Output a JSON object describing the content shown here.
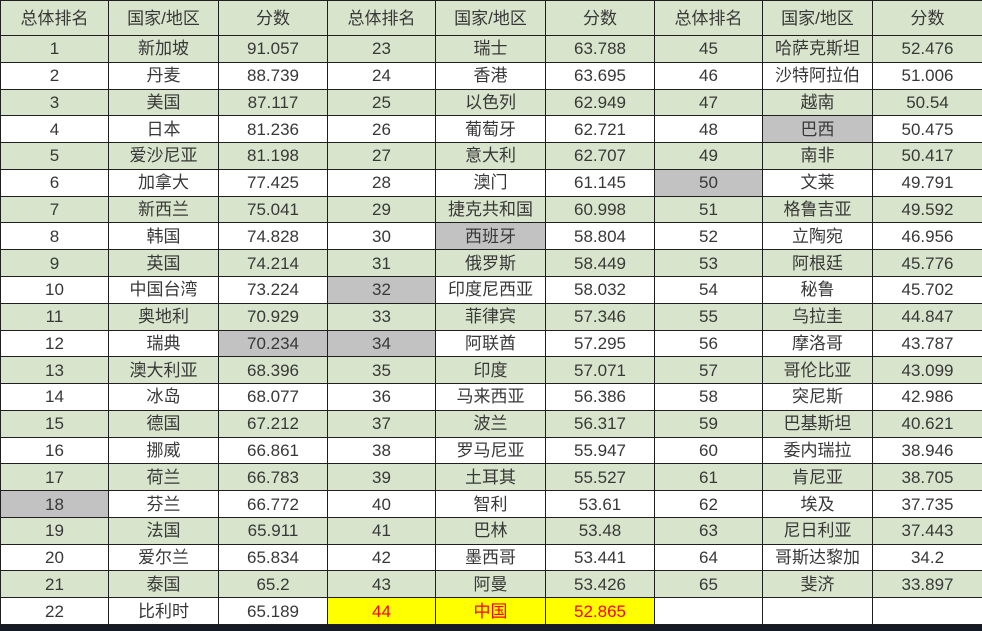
{
  "colors": {
    "green": "#d8e4cb",
    "gray": "#c2c2c2",
    "yellow": "#ffff00",
    "red": "#fe0000",
    "border": "#1f1f1f",
    "text": "#383838",
    "strip": "#151a24"
  },
  "table": {
    "column_headers": [
      "总体排名",
      "国家/地区",
      "分数"
    ],
    "groups": [
      [
        {
          "rank": "1",
          "country": "新加坡",
          "score": "91.057"
        },
        {
          "rank": "2",
          "country": "丹麦",
          "score": "88.739"
        },
        {
          "rank": "3",
          "country": "美国",
          "score": "87.117"
        },
        {
          "rank": "4",
          "country": "日本",
          "score": "81.236"
        },
        {
          "rank": "5",
          "country": "爱沙尼亚",
          "score": "81.198"
        },
        {
          "rank": "6",
          "country": "加拿大",
          "score": "77.425"
        },
        {
          "rank": "7",
          "country": "新西兰",
          "score": "75.041"
        },
        {
          "rank": "8",
          "country": "韩国",
          "score": "74.828"
        },
        {
          "rank": "9",
          "country": "英国",
          "score": "74.214"
        },
        {
          "rank": "10",
          "country": "中国台湾",
          "score": "73.224"
        },
        {
          "rank": "11",
          "country": "奥地利",
          "score": "70.929"
        },
        {
          "rank": "12",
          "country": "瑞典",
          "score": "70.234",
          "gray": [
            "score"
          ]
        },
        {
          "rank": "13",
          "country": "澳大利亚",
          "score": "68.396"
        },
        {
          "rank": "14",
          "country": "冰岛",
          "score": "68.077"
        },
        {
          "rank": "15",
          "country": "德国",
          "score": "67.212"
        },
        {
          "rank": "16",
          "country": "挪威",
          "score": "66.861"
        },
        {
          "rank": "17",
          "country": "荷兰",
          "score": "66.783"
        },
        {
          "rank": "18",
          "country": "芬兰",
          "score": "66.772",
          "gray": [
            "rank"
          ]
        },
        {
          "rank": "19",
          "country": "法国",
          "score": "65.911"
        },
        {
          "rank": "20",
          "country": "爱尔兰",
          "score": "65.834"
        },
        {
          "rank": "21",
          "country": "泰国",
          "score": "65.2"
        },
        {
          "rank": "22",
          "country": "比利时",
          "score": "65.189"
        }
      ],
      [
        {
          "rank": "23",
          "country": "瑞士",
          "score": "63.788"
        },
        {
          "rank": "24",
          "country": "香港",
          "score": "63.695"
        },
        {
          "rank": "25",
          "country": "以色列",
          "score": "62.949"
        },
        {
          "rank": "26",
          "country": "葡萄牙",
          "score": "62.721"
        },
        {
          "rank": "27",
          "country": "意大利",
          "score": "62.707"
        },
        {
          "rank": "28",
          "country": "澳门",
          "score": "61.145"
        },
        {
          "rank": "29",
          "country": "捷克共和国",
          "score": "60.998"
        },
        {
          "rank": "30",
          "country": "西班牙",
          "score": "58.804",
          "gray": [
            "country"
          ]
        },
        {
          "rank": "31",
          "country": "俄罗斯",
          "score": "58.449"
        },
        {
          "rank": "32",
          "country": "印度尼西亚",
          "score": "58.032",
          "gray": [
            "rank"
          ]
        },
        {
          "rank": "33",
          "country": "菲律宾",
          "score": "57.346"
        },
        {
          "rank": "34",
          "country": "阿联酋",
          "score": "57.295",
          "gray": [
            "rank"
          ]
        },
        {
          "rank": "35",
          "country": "印度",
          "score": "57.071"
        },
        {
          "rank": "36",
          "country": "马来西亚",
          "score": "56.386"
        },
        {
          "rank": "37",
          "country": "波兰",
          "score": "56.317"
        },
        {
          "rank": "38",
          "country": "罗马尼亚",
          "score": "55.947"
        },
        {
          "rank": "39",
          "country": "土耳其",
          "score": "55.527"
        },
        {
          "rank": "40",
          "country": "智利",
          "score": "53.61"
        },
        {
          "rank": "41",
          "country": "巴林",
          "score": "53.48"
        },
        {
          "rank": "42",
          "country": "墨西哥",
          "score": "53.441"
        },
        {
          "rank": "43",
          "country": "阿曼",
          "score": "53.426"
        },
        {
          "rank": "44",
          "country": "中国",
          "score": "52.865",
          "highlight": true
        }
      ],
      [
        {
          "rank": "45",
          "country": "哈萨克斯坦",
          "score": "52.476"
        },
        {
          "rank": "46",
          "country": "沙特阿拉伯",
          "score": "51.006"
        },
        {
          "rank": "47",
          "country": "越南",
          "score": "50.54"
        },
        {
          "rank": "48",
          "country": "巴西",
          "score": "50.475",
          "gray": [
            "country"
          ]
        },
        {
          "rank": "49",
          "country": "南非",
          "score": "50.417"
        },
        {
          "rank": "50",
          "country": "文莱",
          "score": "49.791",
          "gray": [
            "rank"
          ]
        },
        {
          "rank": "51",
          "country": "格鲁吉亚",
          "score": "49.592"
        },
        {
          "rank": "52",
          "country": "立陶宛",
          "score": "46.956"
        },
        {
          "rank": "53",
          "country": "阿根廷",
          "score": "45.776"
        },
        {
          "rank": "54",
          "country": "秘鲁",
          "score": "45.702"
        },
        {
          "rank": "55",
          "country": "乌拉圭",
          "score": "44.847"
        },
        {
          "rank": "56",
          "country": "摩洛哥",
          "score": "43.787"
        },
        {
          "rank": "57",
          "country": "哥伦比亚",
          "score": "43.099"
        },
        {
          "rank": "58",
          "country": "突尼斯",
          "score": "42.986"
        },
        {
          "rank": "59",
          "country": "巴基斯坦",
          "score": "40.621"
        },
        {
          "rank": "60",
          "country": "委内瑞拉",
          "score": "38.946"
        },
        {
          "rank": "61",
          "country": "肯尼亚",
          "score": "38.705"
        },
        {
          "rank": "62",
          "country": "埃及",
          "score": "37.735"
        },
        {
          "rank": "63",
          "country": "尼日利亚",
          "score": "37.443"
        },
        {
          "rank": "64",
          "country": "哥斯达黎加",
          "score": "34.2"
        },
        {
          "rank": "65",
          "country": "斐济",
          "score": "33.897"
        },
        {
          "rank": "",
          "country": "",
          "score": ""
        }
      ]
    ]
  }
}
